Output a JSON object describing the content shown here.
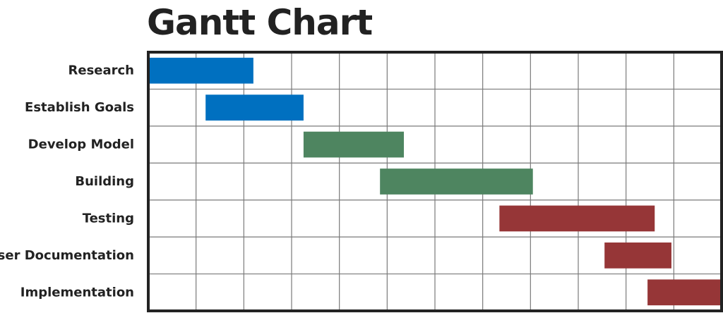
{
  "chart_data": {
    "type": "gantt",
    "title": "Gantt Chart",
    "xlabel": "",
    "ylabel": "",
    "xlim": [
      0,
      12
    ],
    "grid": true,
    "tasks": [
      {
        "label": "Research",
        "start": 0.0,
        "end": 2.2,
        "color": "#0070C0"
      },
      {
        "label": "Establish Goals",
        "start": 1.2,
        "end": 3.25,
        "color": "#0070C0"
      },
      {
        "label": "Develop Model",
        "start": 3.25,
        "end": 5.35,
        "color": "#4E8560"
      },
      {
        "label": "Building",
        "start": 4.85,
        "end": 8.05,
        "color": "#4E8560"
      },
      {
        "label": "Testing",
        "start": 7.35,
        "end": 10.6,
        "color": "#963637"
      },
      {
        "label": "User Documentation",
        "start": 9.55,
        "end": 10.95,
        "color": "#963637"
      },
      {
        "label": "Implementation",
        "start": 10.45,
        "end": 12.0,
        "color": "#963637"
      }
    ]
  }
}
